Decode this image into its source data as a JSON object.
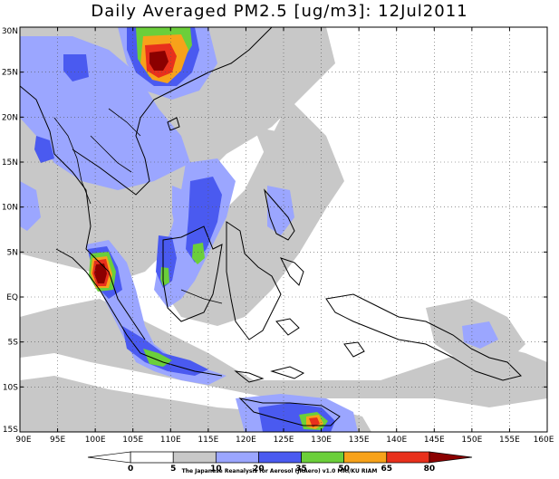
{
  "title": "Daily Averaged PM2.5 [ug/m3]: 12Jul2011",
  "credit": "The Japanese Reanalysis for Aerosol (JRAero) v1.0 MRI/KU RIAM",
  "map": {
    "lon_range": [
      90,
      160
    ],
    "lat_range": [
      -15,
      30
    ],
    "lon_ticks": [
      "90E",
      "95E",
      "100E",
      "105E",
      "110E",
      "115E",
      "120E",
      "125E",
      "130E",
      "135E",
      "140E",
      "145E",
      "150E",
      "155E",
      "160E"
    ],
    "lat_ticks": [
      "30N",
      "25N",
      "20N",
      "15N",
      "10N",
      "5N",
      "EQ",
      "5S",
      "10S",
      "15S"
    ],
    "gridlines": "dotted"
  },
  "colorbar": {
    "levels": [
      "0",
      "5",
      "10",
      "20",
      "35",
      "50",
      "65",
      "80"
    ],
    "colors": [
      "#ffffff",
      "#ffffff",
      "#c8c8c8",
      "#9ba6ff",
      "#4a5af0",
      "#6bcf3a",
      "#f7a21a",
      "#e8301c",
      "#8b0000"
    ]
  },
  "palette": {
    "gray": "#c8c8c8",
    "light_blue": "#9ba6ff",
    "blue": "#4a5af0",
    "green": "#6bcf3a",
    "orange": "#f7a21a",
    "red": "#e8301c",
    "dark_red": "#8b0000"
  }
}
